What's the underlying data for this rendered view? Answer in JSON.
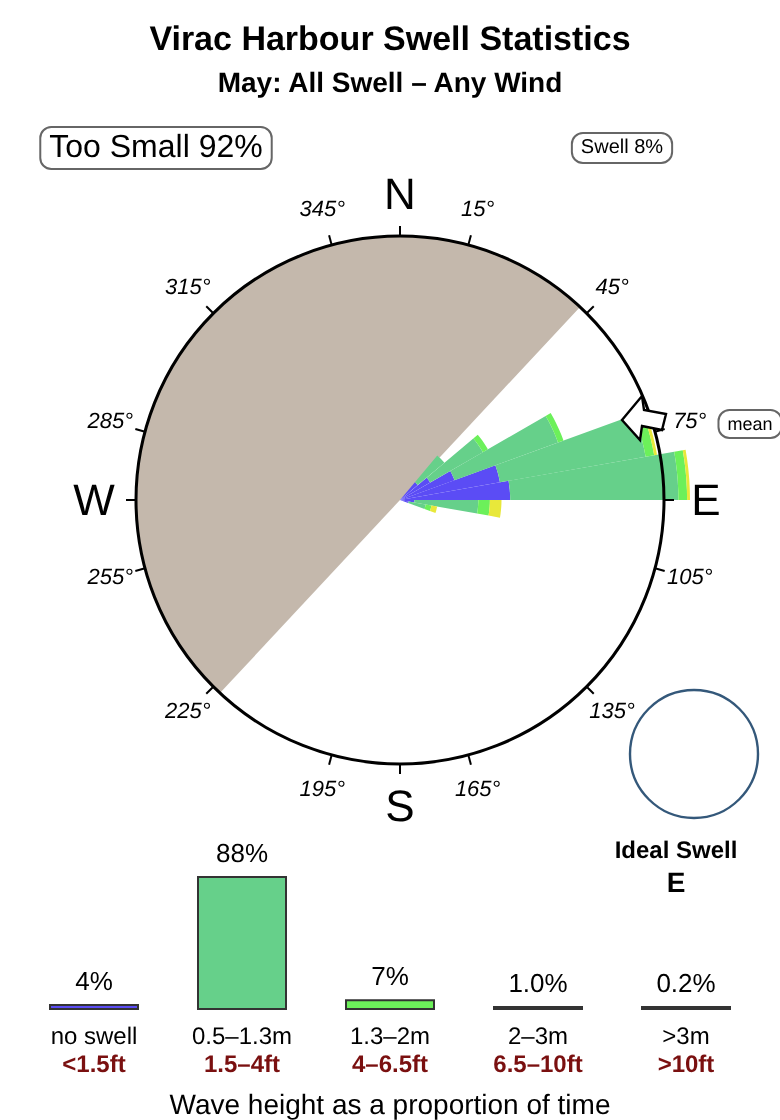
{
  "chart_data": [
    {
      "type": "other",
      "title": "Virac Harbour Swell Statistics",
      "subtitle": "May: All Swell – Any Wind",
      "annotations": [
        "Too Small 92%",
        "Swell 8%",
        "mean",
        "Ideal Swell",
        "E",
        "N",
        "15°",
        "45°",
        "75°",
        "E",
        "105°",
        "135°",
        "165°",
        "S",
        "195°",
        "225°",
        "255°",
        "W",
        "285°",
        "315°",
        "345°"
      ]
    },
    {
      "type": "bar",
      "xlabel": "Wave height as a proportion of time",
      "categories": [
        "no swell\n<1.5ft",
        "0.5–1.3m\n1.5–4ft",
        "1.3–2m\n4–6.5ft",
        "2–3m\n6.5–10ft",
        ">3m\n>10ft"
      ],
      "values": [
        4,
        88,
        7,
        1.0,
        0.2
      ],
      "colors": [
        "#5b4cf5",
        "#66d08a",
        "#6cf05a",
        "#8a8a30",
        "#c8aaa0"
      ],
      "value_labels": [
        "4%",
        "88%",
        "7%",
        "1.0%",
        "0.2%"
      ]
    }
  ]
}
